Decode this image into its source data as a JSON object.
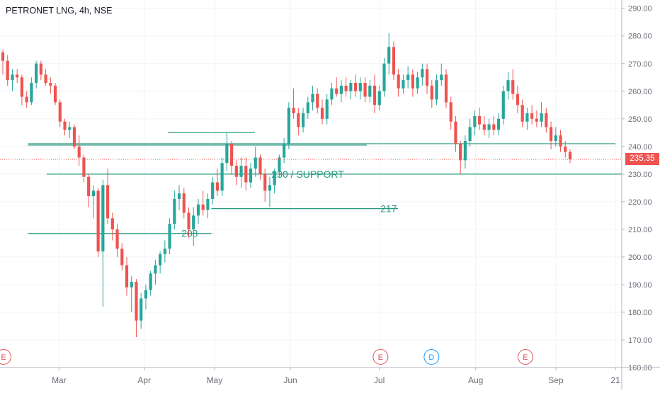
{
  "header": {
    "title": "PETRONET LNG, 4h, NSE"
  },
  "colors": {
    "up": "#26a69a",
    "down": "#ef5350",
    "annotation": "#27997f",
    "grid": "#f0f3fa",
    "axis_text": "#6a6d78",
    "price_line": "#ef5350",
    "event_e": "#e0525a",
    "event_d": "#2196f3"
  },
  "chart_data": {
    "type": "candlestick",
    "title": "PETRONET LNG, 4h, NSE",
    "ylim": [
      160,
      293
    ],
    "y_ticks": [
      "160.00",
      "170.00",
      "180.00",
      "190.00",
      "200.00",
      "210.00",
      "220.00",
      "230.00",
      "240.00",
      "250.00",
      "260.00",
      "270.00",
      "280.00",
      "290.00"
    ],
    "x_ticks": [
      "Mar",
      "Apr",
      "May",
      "Jun",
      "Jul",
      "Aug",
      "Sep",
      "21"
    ],
    "current_price": 235.35,
    "current_price_label": "235.35",
    "grid": true,
    "series": [
      {
        "values": [
          {
            "o": 274,
            "h": 275,
            "l": 266,
            "c": 271
          },
          {
            "o": 271,
            "h": 273,
            "l": 262,
            "c": 264
          },
          {
            "o": 264,
            "h": 268,
            "l": 260,
            "c": 266
          },
          {
            "o": 266,
            "h": 268,
            "l": 263,
            "c": 265
          },
          {
            "o": 265,
            "h": 266,
            "l": 255,
            "c": 258
          },
          {
            "o": 258,
            "h": 260,
            "l": 254,
            "c": 256
          },
          {
            "o": 256,
            "h": 265,
            "l": 255,
            "c": 263
          },
          {
            "o": 263,
            "h": 271,
            "l": 261,
            "c": 270
          },
          {
            "o": 270,
            "h": 271,
            "l": 264,
            "c": 266
          },
          {
            "o": 266,
            "h": 268,
            "l": 262,
            "c": 263
          },
          {
            "o": 263,
            "h": 265,
            "l": 259,
            "c": 262
          },
          {
            "o": 262,
            "h": 263,
            "l": 255,
            "c": 256
          },
          {
            "o": 256,
            "h": 257,
            "l": 247,
            "c": 249
          },
          {
            "o": 249,
            "h": 250,
            "l": 244,
            "c": 246
          },
          {
            "o": 246,
            "h": 249,
            "l": 243,
            "c": 247
          },
          {
            "o": 247,
            "h": 248,
            "l": 239,
            "c": 240
          },
          {
            "o": 240,
            "h": 244,
            "l": 233,
            "c": 236
          },
          {
            "o": 236,
            "h": 237,
            "l": 227,
            "c": 229
          },
          {
            "o": 229,
            "h": 230,
            "l": 218,
            "c": 222
          },
          {
            "o": 222,
            "h": 226,
            "l": 214,
            "c": 224
          },
          {
            "o": 224,
            "h": 225,
            "l": 200,
            "c": 202
          },
          {
            "o": 202,
            "h": 228,
            "l": 182,
            "c": 226
          },
          {
            "o": 226,
            "h": 232,
            "l": 212,
            "c": 214
          },
          {
            "o": 214,
            "h": 216,
            "l": 206,
            "c": 210
          },
          {
            "o": 210,
            "h": 212,
            "l": 200,
            "c": 203
          },
          {
            "o": 203,
            "h": 205,
            "l": 195,
            "c": 197
          },
          {
            "o": 197,
            "h": 200,
            "l": 186,
            "c": 189
          },
          {
            "o": 189,
            "h": 193,
            "l": 180,
            "c": 191
          },
          {
            "o": 191,
            "h": 192,
            "l": 171,
            "c": 177
          },
          {
            "o": 177,
            "h": 187,
            "l": 174,
            "c": 185
          },
          {
            "o": 185,
            "h": 190,
            "l": 181,
            "c": 188
          },
          {
            "o": 188,
            "h": 195,
            "l": 186,
            "c": 194
          },
          {
            "o": 194,
            "h": 199,
            "l": 190,
            "c": 197
          },
          {
            "o": 197,
            "h": 202,
            "l": 194,
            "c": 201
          },
          {
            "o": 201,
            "h": 206,
            "l": 198,
            "c": 203
          },
          {
            "o": 203,
            "h": 214,
            "l": 201,
            "c": 212
          },
          {
            "o": 212,
            "h": 224,
            "l": 210,
            "c": 221
          },
          {
            "o": 221,
            "h": 226,
            "l": 217,
            "c": 223
          },
          {
            "o": 223,
            "h": 225,
            "l": 214,
            "c": 216
          },
          {
            "o": 216,
            "h": 218,
            "l": 207,
            "c": 210
          },
          {
            "o": 210,
            "h": 218,
            "l": 204,
            "c": 215
          },
          {
            "o": 215,
            "h": 221,
            "l": 212,
            "c": 219
          },
          {
            "o": 219,
            "h": 224,
            "l": 215,
            "c": 217
          },
          {
            "o": 217,
            "h": 223,
            "l": 214,
            "c": 221
          },
          {
            "o": 221,
            "h": 229,
            "l": 219,
            "c": 227
          },
          {
            "o": 227,
            "h": 232,
            "l": 222,
            "c": 224
          },
          {
            "o": 224,
            "h": 236,
            "l": 222,
            "c": 234
          },
          {
            "o": 234,
            "h": 245,
            "l": 231,
            "c": 241
          },
          {
            "o": 241,
            "h": 242,
            "l": 230,
            "c": 233
          },
          {
            "o": 233,
            "h": 235,
            "l": 226,
            "c": 229
          },
          {
            "o": 229,
            "h": 236,
            "l": 225,
            "c": 233
          },
          {
            "o": 233,
            "h": 236,
            "l": 224,
            "c": 227
          },
          {
            "o": 227,
            "h": 234,
            "l": 225,
            "c": 232
          },
          {
            "o": 232,
            "h": 240,
            "l": 229,
            "c": 236
          },
          {
            "o": 236,
            "h": 237,
            "l": 228,
            "c": 230
          },
          {
            "o": 230,
            "h": 232,
            "l": 220,
            "c": 224
          },
          {
            "o": 224,
            "h": 229,
            "l": 218,
            "c": 226
          },
          {
            "o": 226,
            "h": 232,
            "l": 223,
            "c": 231
          },
          {
            "o": 231,
            "h": 237,
            "l": 229,
            "c": 236
          },
          {
            "o": 236,
            "h": 243,
            "l": 234,
            "c": 241
          },
          {
            "o": 241,
            "h": 256,
            "l": 239,
            "c": 254
          },
          {
            "o": 254,
            "h": 261,
            "l": 250,
            "c": 252
          },
          {
            "o": 252,
            "h": 254,
            "l": 244,
            "c": 247
          },
          {
            "o": 247,
            "h": 254,
            "l": 245,
            "c": 252
          },
          {
            "o": 252,
            "h": 258,
            "l": 250,
            "c": 256
          },
          {
            "o": 256,
            "h": 262,
            "l": 253,
            "c": 259
          },
          {
            "o": 259,
            "h": 261,
            "l": 252,
            "c": 254
          },
          {
            "o": 254,
            "h": 257,
            "l": 248,
            "c": 250
          },
          {
            "o": 250,
            "h": 259,
            "l": 248,
            "c": 257
          },
          {
            "o": 257,
            "h": 263,
            "l": 255,
            "c": 261
          },
          {
            "o": 261,
            "h": 265,
            "l": 258,
            "c": 259
          },
          {
            "o": 259,
            "h": 264,
            "l": 256,
            "c": 262
          },
          {
            "o": 262,
            "h": 265,
            "l": 258,
            "c": 260
          },
          {
            "o": 260,
            "h": 264,
            "l": 257,
            "c": 263
          },
          {
            "o": 263,
            "h": 266,
            "l": 258,
            "c": 260
          },
          {
            "o": 260,
            "h": 265,
            "l": 257,
            "c": 263
          },
          {
            "o": 263,
            "h": 265,
            "l": 256,
            "c": 258
          },
          {
            "o": 258,
            "h": 264,
            "l": 256,
            "c": 262
          },
          {
            "o": 262,
            "h": 266,
            "l": 252,
            "c": 255
          },
          {
            "o": 255,
            "h": 262,
            "l": 253,
            "c": 260
          },
          {
            "o": 260,
            "h": 272,
            "l": 258,
            "c": 270
          },
          {
            "o": 270,
            "h": 281,
            "l": 266,
            "c": 276
          },
          {
            "o": 276,
            "h": 278,
            "l": 264,
            "c": 266
          },
          {
            "o": 266,
            "h": 268,
            "l": 258,
            "c": 261
          },
          {
            "o": 261,
            "h": 266,
            "l": 259,
            "c": 264
          },
          {
            "o": 264,
            "h": 269,
            "l": 261,
            "c": 266
          },
          {
            "o": 266,
            "h": 268,
            "l": 258,
            "c": 261
          },
          {
            "o": 261,
            "h": 267,
            "l": 259,
            "c": 265
          },
          {
            "o": 265,
            "h": 270,
            "l": 262,
            "c": 268
          },
          {
            "o": 268,
            "h": 270,
            "l": 259,
            "c": 262
          },
          {
            "o": 262,
            "h": 264,
            "l": 254,
            "c": 257
          },
          {
            "o": 257,
            "h": 266,
            "l": 255,
            "c": 264
          },
          {
            "o": 264,
            "h": 270,
            "l": 262,
            "c": 266
          },
          {
            "o": 266,
            "h": 268,
            "l": 254,
            "c": 256
          },
          {
            "o": 256,
            "h": 258,
            "l": 246,
            "c": 249
          },
          {
            "o": 249,
            "h": 251,
            "l": 238,
            "c": 241
          },
          {
            "o": 241,
            "h": 242,
            "l": 230,
            "c": 235
          },
          {
            "o": 235,
            "h": 244,
            "l": 232,
            "c": 242
          },
          {
            "o": 242,
            "h": 250,
            "l": 240,
            "c": 247
          },
          {
            "o": 247,
            "h": 253,
            "l": 244,
            "c": 251
          },
          {
            "o": 251,
            "h": 254,
            "l": 246,
            "c": 248
          },
          {
            "o": 248,
            "h": 251,
            "l": 244,
            "c": 246
          },
          {
            "o": 246,
            "h": 250,
            "l": 243,
            "c": 248
          },
          {
            "o": 248,
            "h": 251,
            "l": 244,
            "c": 246
          },
          {
            "o": 246,
            "h": 252,
            "l": 244,
            "c": 250
          },
          {
            "o": 250,
            "h": 262,
            "l": 248,
            "c": 260
          },
          {
            "o": 260,
            "h": 267,
            "l": 257,
            "c": 264
          },
          {
            "o": 264,
            "h": 268,
            "l": 257,
            "c": 259
          },
          {
            "o": 259,
            "h": 262,
            "l": 252,
            "c": 255
          },
          {
            "o": 255,
            "h": 257,
            "l": 247,
            "c": 249
          },
          {
            "o": 249,
            "h": 254,
            "l": 246,
            "c": 252
          },
          {
            "o": 252,
            "h": 255,
            "l": 248,
            "c": 250
          },
          {
            "o": 250,
            "h": 253,
            "l": 247,
            "c": 249
          },
          {
            "o": 249,
            "h": 256,
            "l": 247,
            "c": 252
          },
          {
            "o": 252,
            "h": 254,
            "l": 245,
            "c": 247
          },
          {
            "o": 247,
            "h": 249,
            "l": 239,
            "c": 242
          },
          {
            "o": 242,
            "h": 247,
            "l": 240,
            "c": 244
          },
          {
            "o": 244,
            "h": 246,
            "l": 238,
            "c": 240
          },
          {
            "o": 240,
            "h": 242,
            "l": 236,
            "c": 238
          },
          {
            "o": 238,
            "h": 239,
            "l": 234,
            "c": 235.35
          }
        ]
      }
    ],
    "annotations": [
      {
        "type": "hline",
        "y": 240.5,
        "x_start": 0.045,
        "x_end": 0.59
      },
      {
        "type": "hline",
        "y": 241,
        "x_start": 0.045,
        "x_end": 0.99
      },
      {
        "type": "hline",
        "y": 230,
        "x_start": 0.075,
        "x_end": 1.0
      },
      {
        "type": "hline",
        "y": 245,
        "x_start": 0.27,
        "x_end": 0.41
      },
      {
        "type": "hline",
        "y": 217.5,
        "x_start": 0.34,
        "x_end": 0.64
      },
      {
        "type": "hline",
        "y": 208.5,
        "x_start": 0.045,
        "x_end": 0.34
      },
      {
        "type": "label",
        "text": "230 / SUPPORT",
        "x": 0.495,
        "y": 230
      },
      {
        "type": "label",
        "text": "217",
        "x": 0.625,
        "y": 217.5
      },
      {
        "type": "label",
        "text": "208",
        "x": 0.305,
        "y": 208.5
      }
    ],
    "events": [
      {
        "label": "E",
        "kind": "earnings",
        "x": 0.0
      },
      {
        "label": "E",
        "kind": "earnings",
        "x": 0.612
      },
      {
        "label": "D",
        "kind": "dividend",
        "x": 0.694
      },
      {
        "label": "E",
        "kind": "earnings",
        "x": 0.845
      }
    ]
  }
}
